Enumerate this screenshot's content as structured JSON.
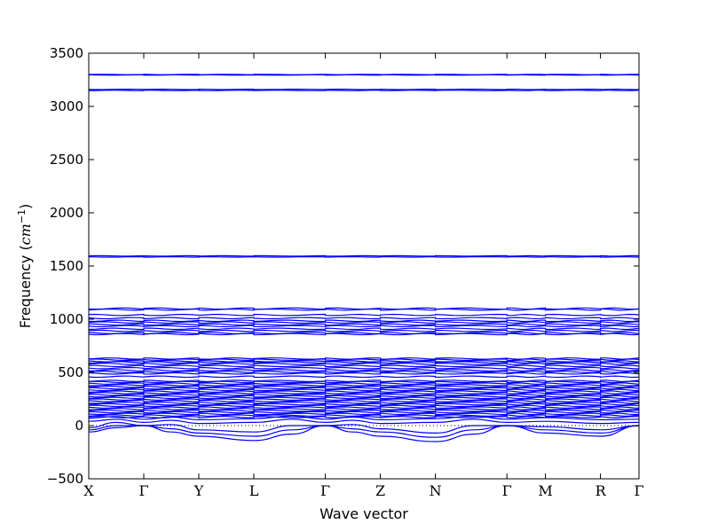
{
  "chart_data": {
    "type": "line",
    "xlabel": "Wave vector",
    "ylabel_text": "Frequency (",
    "ylabel_unit": "cm",
    "ylabel_exp": "−1",
    "ylabel_close": ")",
    "ylim": [
      -500,
      3500
    ],
    "yticks": [
      -500,
      0,
      500,
      1000,
      1500,
      2000,
      2500,
      3000,
      3500
    ],
    "xlim": [
      0,
      10
    ],
    "high_symbol_points": [
      {
        "label": "X",
        "x": 0
      },
      {
        "label": "Γ",
        "x": 1
      },
      {
        "label": "Y",
        "x": 2
      },
      {
        "label": "L",
        "x": 3
      },
      {
        "label": "Γ",
        "x": 4.3
      },
      {
        "label": "Z",
        "x": 5.3
      },
      {
        "label": "N",
        "x": 6.3
      },
      {
        "label": "Γ",
        "x": 7.6
      },
      {
        "label": "M",
        "x": 8.3
      },
      {
        "label": "R",
        "x": 9.3
      },
      {
        "label": "Γ",
        "x": 10
      }
    ],
    "zero_line": {
      "y": 0,
      "style": "dotted"
    },
    "series_color": "#0000ff",
    "flat_bands": [
      3300,
      3295,
      3160,
      3150,
      1595,
      1585,
      1100,
      1090,
      1040,
      1010,
      985,
      970,
      950,
      935,
      910,
      890,
      870,
      860,
      630,
      620,
      605,
      595,
      580,
      560,
      540,
      520,
      505,
      490,
      460,
      420,
      410,
      395,
      380,
      365,
      350,
      335,
      320,
      305,
      290,
      275,
      260,
      245,
      230,
      215,
      200,
      185,
      170,
      155,
      140,
      125,
      110,
      95,
      80
    ],
    "acoustic_bands": [
      {
        "name": "branch-1",
        "points": [
          [
            0,
            -60
          ],
          [
            0.5,
            -20
          ],
          [
            1,
            0
          ],
          [
            1.5,
            -60
          ],
          [
            2,
            -100
          ],
          [
            3,
            -140
          ],
          [
            3.7,
            -80
          ],
          [
            4.3,
            0
          ],
          [
            4.8,
            -60
          ],
          [
            5.3,
            -100
          ],
          [
            6.3,
            -150
          ],
          [
            7,
            -80
          ],
          [
            7.6,
            0
          ],
          [
            8.3,
            -70
          ],
          [
            9.3,
            -100
          ],
          [
            10,
            0
          ]
        ]
      },
      {
        "name": "branch-2",
        "points": [
          [
            0,
            -40
          ],
          [
            0.5,
            0
          ],
          [
            1,
            0
          ],
          [
            1.5,
            -30
          ],
          [
            2,
            -70
          ],
          [
            3,
            -100
          ],
          [
            3.7,
            -40
          ],
          [
            4.3,
            0
          ],
          [
            4.8,
            -30
          ],
          [
            5.3,
            -60
          ],
          [
            6.3,
            -110
          ],
          [
            7,
            -40
          ],
          [
            7.6,
            0
          ],
          [
            8.3,
            -40
          ],
          [
            9.3,
            -70
          ],
          [
            10,
            0
          ]
        ]
      },
      {
        "name": "branch-3",
        "points": [
          [
            0,
            -20
          ],
          [
            0.5,
            30
          ],
          [
            1,
            0
          ],
          [
            1.5,
            10
          ],
          [
            2,
            -40
          ],
          [
            3,
            -60
          ],
          [
            3.7,
            0
          ],
          [
            4.3,
            0
          ],
          [
            4.8,
            10
          ],
          [
            5.3,
            -30
          ],
          [
            6.3,
            -70
          ],
          [
            7,
            0
          ],
          [
            7.6,
            0
          ],
          [
            8.3,
            -10
          ],
          [
            9.3,
            -40
          ],
          [
            10,
            0
          ]
        ]
      },
      {
        "name": "branch-4",
        "points": [
          [
            0,
            40
          ],
          [
            0.5,
            60
          ],
          [
            1,
            30
          ],
          [
            1.5,
            50
          ],
          [
            2,
            20
          ],
          [
            3,
            30
          ],
          [
            3.7,
            60
          ],
          [
            4.3,
            30
          ],
          [
            4.8,
            50
          ],
          [
            5.3,
            20
          ],
          [
            6.3,
            30
          ],
          [
            7,
            60
          ],
          [
            7.6,
            30
          ],
          [
            8.3,
            40
          ],
          [
            9.3,
            20
          ],
          [
            10,
            30
          ]
        ]
      },
      {
        "name": "branch-5",
        "points": [
          [
            0,
            70
          ],
          [
            0.5,
            85
          ],
          [
            1,
            60
          ],
          [
            1.5,
            80
          ],
          [
            2,
            55
          ],
          [
            3,
            65
          ],
          [
            3.7,
            90
          ],
          [
            4.3,
            60
          ],
          [
            4.8,
            80
          ],
          [
            5.3,
            55
          ],
          [
            6.3,
            65
          ],
          [
            7,
            90
          ],
          [
            7.6,
            60
          ],
          [
            8.3,
            75
          ],
          [
            9.3,
            55
          ],
          [
            10,
            60
          ]
        ]
      }
    ]
  }
}
